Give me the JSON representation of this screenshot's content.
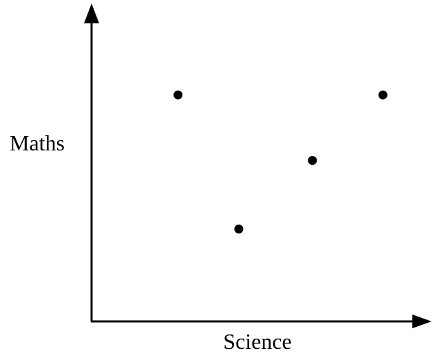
{
  "chart_data": {
    "type": "scatter",
    "title": "",
    "xlabel": "Science",
    "ylabel": "Maths",
    "xlim": [
      0,
      100
    ],
    "ylim": [
      0,
      100
    ],
    "grid": false,
    "legend": "none",
    "ticks": false,
    "points": [
      {
        "x": 27,
        "y": 76
      },
      {
        "x": 46,
        "y": 31
      },
      {
        "x": 69,
        "y": 54
      },
      {
        "x": 91,
        "y": 76
      }
    ],
    "colors": {
      "axis": "#000000",
      "point": "#000000"
    }
  }
}
